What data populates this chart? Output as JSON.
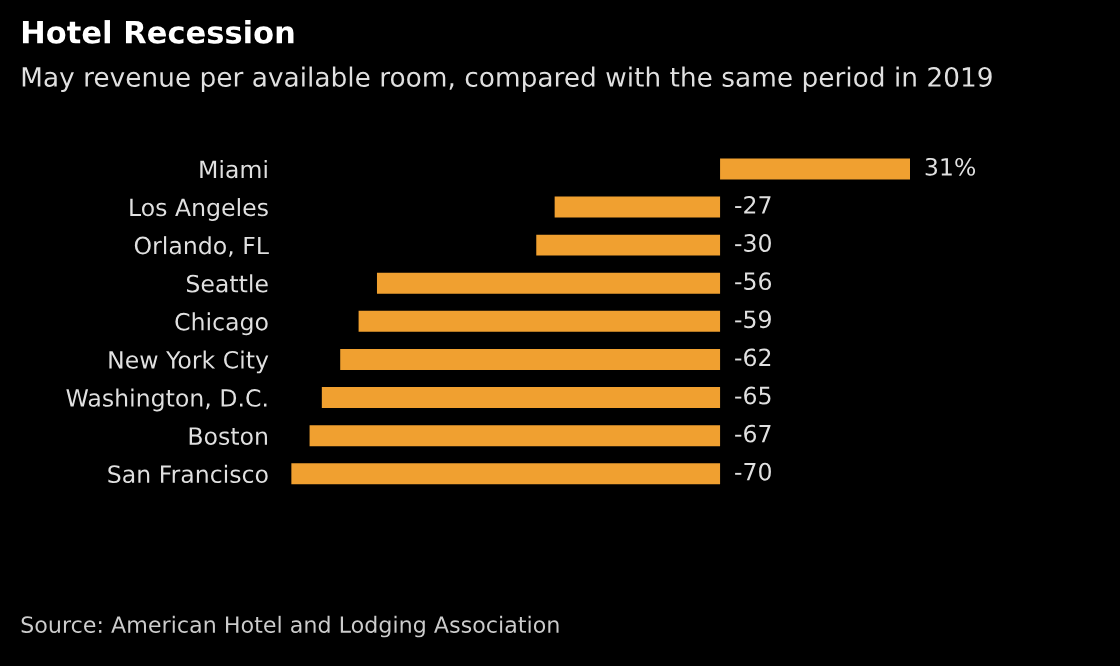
{
  "chart_data": {
    "type": "bar",
    "orientation": "horizontal",
    "title": "Hotel Recession",
    "subtitle": "May revenue per available room, compared with the same period in 2019",
    "categories": [
      "Miami",
      "Los Angeles",
      "Orlando, FL",
      "Seattle",
      "Chicago",
      "New York City",
      "Washington, D.C.",
      "Boston",
      "San Francisco"
    ],
    "values": [
      31,
      -27,
      -30,
      -56,
      -59,
      -62,
      -65,
      -67,
      -70
    ],
    "value_labels": [
      "31%",
      "-27",
      "-30",
      "-56",
      "-59",
      "-62",
      "-65",
      "-67",
      "-70"
    ],
    "color": "#f0a030",
    "annotations": [
      "Source: American Hotel and Lodging Association"
    ]
  }
}
